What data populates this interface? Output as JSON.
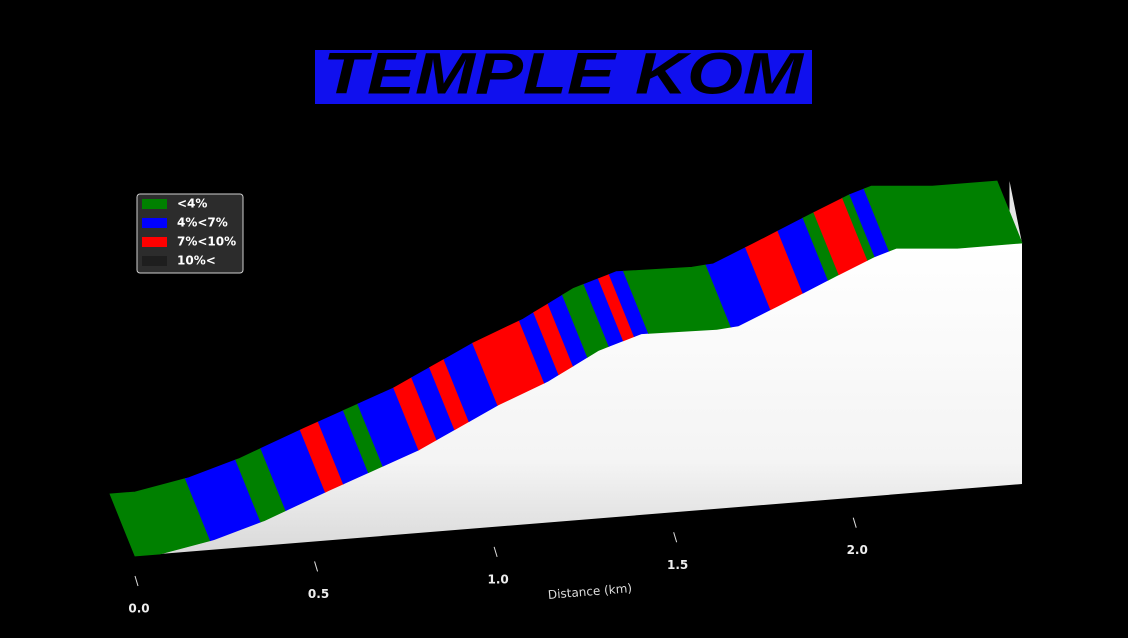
{
  "chart_data": {
    "type": "ribbon3d",
    "title": "TEMPLE KOM",
    "xlabel": "Distance (km)",
    "xlim": [
      0,
      2.47
    ],
    "xticks": [
      {
        "value": 0,
        "label": "0.0"
      },
      {
        "value": 0.5,
        "label": "0.5"
      },
      {
        "value": 1,
        "label": "1.0"
      },
      {
        "value": 1.5,
        "label": "1.5"
      },
      {
        "value": 2,
        "label": "2.0"
      }
    ],
    "legend_position": "upper left",
    "series": [
      {
        "name": "<4%",
        "color": "#008000"
      },
      {
        "name": "4%<7%",
        "color": "#0000ff"
      },
      {
        "name": "7%<10%",
        "color": "#ff0000"
      },
      {
        "name": "10%<",
        "color": "#1e1e1e"
      }
    ],
    "profile": {
      "x": [
        0,
        0.07,
        0.22,
        0.36,
        0.54,
        0.79,
        1.01,
        1.15,
        1.29,
        1.41,
        1.62,
        1.68,
        1.79,
        1.95,
        2.06,
        2.12,
        2.29,
        2.47
      ],
      "elevation": [
        0,
        0,
        6,
        15,
        30,
        50,
        73,
        85,
        101,
        109,
        108,
        109,
        119,
        134,
        144,
        148,
        145,
        145
      ]
    },
    "segments": {
      "breaks": [
        0,
        0.21,
        0.35,
        0.42,
        0.53,
        0.58,
        0.65,
        0.69,
        0.79,
        0.84,
        0.89,
        0.93,
        1.01,
        1.14,
        1.18,
        1.22,
        1.26,
        1.32,
        1.36,
        1.39,
        1.43,
        1.66,
        1.77,
        1.86,
        1.93,
        1.96,
        2.04,
        2.06,
        2.1,
        2.47
      ],
      "grades": [
        "<4%",
        "4%<7%",
        "<4%",
        "4%<7%",
        "7%<10%",
        "4%<7%",
        "<4%",
        "4%<7%",
        "7%<10%",
        "4%<7%",
        "7%<10%",
        "4%<7%",
        "7%<10%",
        "4%<7%",
        "7%<10%",
        "4%<7%",
        "<4%",
        "4%<7%",
        "7%<10%",
        "4%<7%",
        "<4%",
        "4%<7%",
        "7%<10%",
        "4%<7%",
        "<4%",
        "7%<10%",
        "<4%",
        "4%<7%",
        "<4%"
      ]
    }
  }
}
